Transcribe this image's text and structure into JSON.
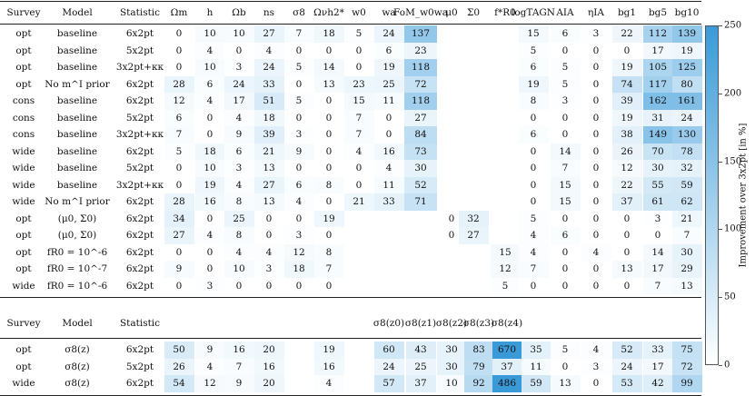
{
  "top_header": {
    "survey": "Survey",
    "model": "Model",
    "statistic": "Statistic",
    "params": [
      "Ωm",
      "h",
      "Ωb",
      "ns",
      "σ8",
      "Ωνh2*",
      "w0",
      "wa",
      "FoM_w0wa",
      "μ0",
      "Σ0",
      "f*R0",
      "logTAGN",
      "AIA",
      "ηIA",
      "bg1",
      "bg5",
      "bg10"
    ]
  },
  "rows_top": [
    {
      "survey": "opt",
      "model": "baseline",
      "stat": "6x2pt",
      "vals": [
        0,
        10,
        10,
        27,
        7,
        18,
        5,
        24,
        137,
        null,
        null,
        null,
        15,
        6,
        3,
        22,
        112,
        139
      ]
    },
    {
      "survey": "opt",
      "model": "baseline",
      "stat": "5x2pt",
      "vals": [
        0,
        4,
        0,
        4,
        0,
        0,
        0,
        6,
        23,
        null,
        null,
        null,
        5,
        0,
        0,
        0,
        17,
        19
      ]
    },
    {
      "survey": "opt",
      "model": "baseline",
      "stat": "3x2pt+κκ",
      "vals": [
        0,
        10,
        3,
        24,
        5,
        14,
        0,
        19,
        118,
        null,
        null,
        null,
        6,
        5,
        0,
        19,
        105,
        125
      ]
    },
    {
      "survey": "opt",
      "model": "No m^I prior",
      "stat": "6x2pt",
      "vals": [
        28,
        6,
        24,
        33,
        0,
        13,
        23,
        25,
        72,
        null,
        null,
        null,
        19,
        5,
        0,
        74,
        117,
        80
      ]
    },
    {
      "survey": "cons",
      "model": "baseline",
      "stat": "6x2pt",
      "vals": [
        12,
        4,
        17,
        51,
        5,
        0,
        15,
        11,
        118,
        null,
        null,
        null,
        8,
        3,
        0,
        39,
        162,
        161
      ]
    },
    {
      "survey": "cons",
      "model": "baseline",
      "stat": "5x2pt",
      "vals": [
        6,
        0,
        4,
        18,
        0,
        0,
        7,
        0,
        27,
        null,
        null,
        null,
        0,
        0,
        0,
        19,
        31,
        24
      ]
    },
    {
      "survey": "cons",
      "model": "baseline",
      "stat": "3x2pt+κκ",
      "vals": [
        7,
        0,
        9,
        39,
        3,
        0,
        7,
        0,
        84,
        null,
        null,
        null,
        6,
        0,
        0,
        38,
        149,
        130
      ]
    },
    {
      "survey": "wide",
      "model": "baseline",
      "stat": "6x2pt",
      "vals": [
        5,
        18,
        6,
        21,
        9,
        0,
        4,
        16,
        73,
        null,
        null,
        null,
        0,
        14,
        0,
        26,
        70,
        78
      ]
    },
    {
      "survey": "wide",
      "model": "baseline",
      "stat": "5x2pt",
      "vals": [
        0,
        10,
        3,
        13,
        0,
        0,
        0,
        4,
        30,
        null,
        null,
        null,
        0,
        7,
        0,
        12,
        30,
        32
      ]
    },
    {
      "survey": "wide",
      "model": "baseline",
      "stat": "3x2pt+κκ",
      "vals": [
        0,
        19,
        4,
        27,
        6,
        8,
        0,
        11,
        52,
        null,
        null,
        null,
        0,
        15,
        0,
        22,
        55,
        59
      ]
    },
    {
      "survey": "wide",
      "model": "No m^I prior",
      "stat": "6x2pt",
      "vals": [
        28,
        16,
        8,
        13,
        4,
        0,
        21,
        33,
        71,
        null,
        null,
        null,
        0,
        15,
        0,
        37,
        61,
        62
      ]
    },
    {
      "survey": "opt",
      "model": "(μ0, Σ0)",
      "stat": "6x2pt",
      "vals": [
        34,
        0,
        25,
        0,
        0,
        19,
        null,
        null,
        null,
        0,
        32,
        null,
        5,
        0,
        0,
        0,
        3,
        21
      ]
    },
    {
      "survey": "opt",
      "model": "(μ0, Σ0)",
      "stat": "6x2pt",
      "vals": [
        27,
        4,
        8,
        0,
        3,
        0,
        null,
        null,
        null,
        0,
        27,
        null,
        4,
        6,
        0,
        0,
        0,
        7
      ]
    },
    {
      "survey": "opt",
      "model": "fR0 = 10^-6",
      "stat": "6x2pt",
      "vals": [
        0,
        0,
        4,
        4,
        12,
        8,
        null,
        null,
        null,
        null,
        null,
        15,
        4,
        0,
        4,
        0,
        14,
        30
      ]
    },
    {
      "survey": "opt",
      "model": "fR0 = 10^-7",
      "stat": "6x2pt",
      "vals": [
        9,
        0,
        10,
        3,
        18,
        7,
        null,
        null,
        null,
        null,
        null,
        12,
        7,
        0,
        0,
        13,
        17,
        29
      ]
    },
    {
      "survey": "wide",
      "model": "fR0 = 10^-6",
      "stat": "6x2pt",
      "vals": [
        0,
        3,
        0,
        0,
        0,
        0,
        null,
        null,
        null,
        null,
        null,
        5,
        0,
        0,
        0,
        0,
        7,
        13
      ]
    }
  ],
  "bottom_header": {
    "survey": "Survey",
    "model": "Model",
    "statistic": "Statistic",
    "sigma_cols": [
      "σ8(z0)",
      "σ8(z1)",
      "σ8(z2)",
      "σ8(z3)",
      "σ8(z4)"
    ]
  },
  "rows_bottom": [
    {
      "survey": "opt",
      "model": "σ8(z)",
      "stat": "6x2pt",
      "vals": [
        50,
        9,
        16,
        20,
        null,
        19,
        60,
        43,
        30,
        83,
        670,
        35,
        5,
        4,
        52,
        33,
        75
      ]
    },
    {
      "survey": "opt",
      "model": "σ8(z)",
      "stat": "5x2pt",
      "vals": [
        26,
        4,
        7,
        16,
        null,
        16,
        24,
        25,
        30,
        79,
        37,
        11,
        0,
        3,
        24,
        17,
        72
      ]
    },
    {
      "survey": "wide",
      "model": "σ8(z)",
      "stat": "6x2pt",
      "vals": [
        54,
        12,
        9,
        20,
        null,
        4,
        57,
        37,
        10,
        92,
        486,
        59,
        13,
        0,
        53,
        42,
        99
      ]
    }
  ],
  "colorbar": {
    "label": "Improvement over 3x2pt [in %]",
    "ticks": [
      "250",
      "200",
      "150",
      "100",
      "50",
      "0"
    ],
    "max": 250,
    "color_low": "#ffffff",
    "color_high": "#3a9ad8"
  }
}
